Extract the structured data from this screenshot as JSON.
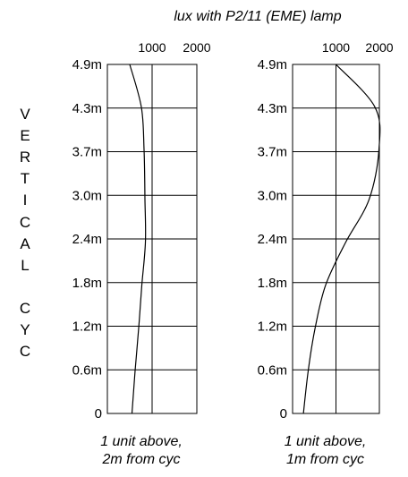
{
  "title": "lux with P2/11 (EME) lamp",
  "side_label": [
    "V",
    "E",
    "R",
    "T",
    "I",
    "C",
    "A",
    "L",
    "",
    "C",
    "Y",
    "C"
  ],
  "colors": {
    "line": "#000000",
    "grid": "#000000",
    "background": "#ffffff"
  },
  "chart_data": [
    {
      "type": "line",
      "caption": [
        "1 unit above,",
        "2m from cyc"
      ],
      "x_ticks": [
        1000,
        2000
      ],
      "x_tick_labels": [
        "1000",
        "2000"
      ],
      "xlim": [
        0,
        2000
      ],
      "y_tick_labels": [
        "0",
        "0.6m",
        "1.2m",
        "1.8m",
        "2.4m",
        "3.0m",
        "3.7m",
        "4.3m",
        "4.9m"
      ],
      "grid": true,
      "series": [
        {
          "points": [
            [
              550,
              0.0
            ],
            [
              620,
              0.6
            ],
            [
              700,
              1.2
            ],
            [
              770,
              1.8
            ],
            [
              850,
              2.4
            ],
            [
              840,
              3.0
            ],
            [
              820,
              3.7
            ],
            [
              760,
              4.3
            ],
            [
              500,
              4.9
            ]
          ]
        }
      ]
    },
    {
      "type": "line",
      "caption": [
        "1 unit above,",
        "1m from cyc"
      ],
      "x_ticks": [
        1000,
        2000
      ],
      "x_tick_labels": [
        "1000",
        "2000"
      ],
      "xlim": [
        0,
        2000
      ],
      "y_tick_labels": [
        "0",
        "0.6m",
        "1.2m",
        "1.8m",
        "2.4m",
        "3.0m",
        "3.7m",
        "4.3m",
        "4.9m"
      ],
      "grid": true,
      "series": [
        {
          "points": [
            [
              250,
              0.0
            ],
            [
              360,
              0.6
            ],
            [
              520,
              1.2
            ],
            [
              760,
              1.8
            ],
            [
              1220,
              2.4
            ],
            [
              1760,
              3.0
            ],
            [
              1990,
              3.7
            ],
            [
              1900,
              4.3
            ],
            [
              1000,
              4.9
            ]
          ]
        }
      ]
    }
  ]
}
